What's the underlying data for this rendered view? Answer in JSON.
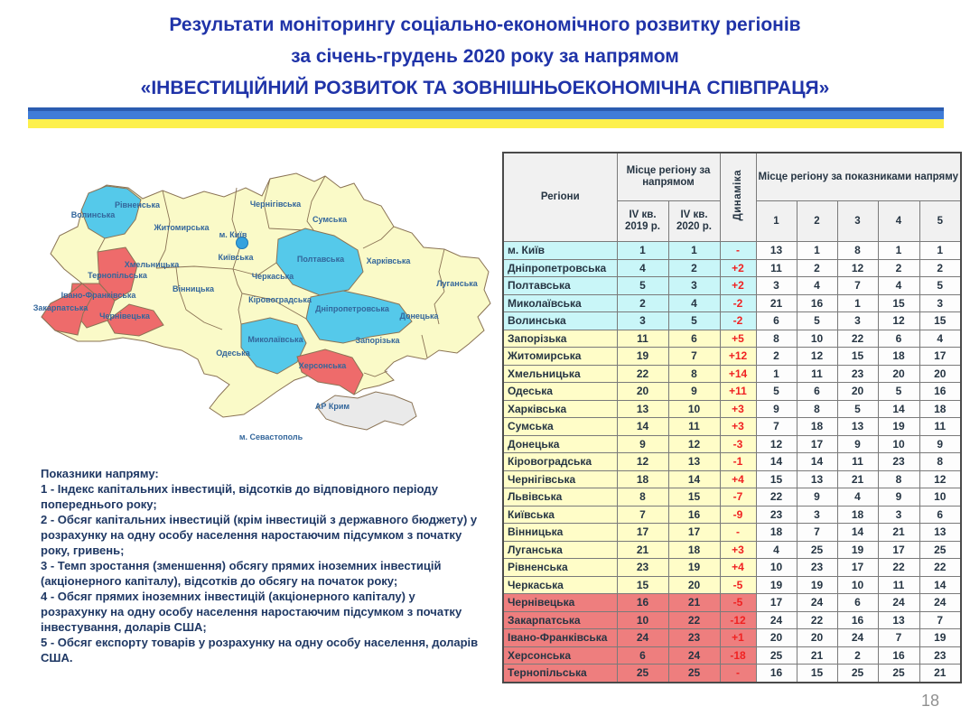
{
  "colors": {
    "title_blue": "#1f33a8",
    "flag_dark_blue": "#2b5cb0",
    "flag_blue": "#3f7cd8",
    "flag_yellow": "#fdf04c",
    "notes_navy": "#1f3864",
    "dyn_red": "#f02222",
    "leaders_bg": "#c9f6f8",
    "middle_bg": "#fffdc8",
    "outsiders_bg": "#ee7e7e",
    "map_leader": "#55c9ea",
    "map_middle": "#fafac8",
    "map_outsider": "#ee6b6b",
    "map_crimea": "#eaeaea",
    "map_border": "#8a7355",
    "map_label": "#33669b",
    "kyiv_dot": "#35a2de",
    "table_text": "#263543",
    "page_gray": "#909090"
  },
  "title": {
    "line1": "Результати моніторингу соціально-економічного розвитку регіонів",
    "line2": "за січень-грудень 2020 року за напрямом",
    "line3": "«ІНВЕСТИЦІЙНИЙ РОЗВИТОК ТА ЗОВНІШНЬОЕКОНОМІЧНА СПІВПРАЦЯ»"
  },
  "page_number": "18",
  "map": {
    "labels": [
      {
        "text": "Волинська"
      },
      {
        "text": "Рівненська"
      },
      {
        "text": "Житомирська"
      },
      {
        "text": "м. Київ"
      },
      {
        "text": "Київська"
      },
      {
        "text": "Чернігівська"
      },
      {
        "text": "Сумська"
      },
      {
        "text": "Полтавська"
      },
      {
        "text": "Харківська"
      },
      {
        "text": "Луганська"
      },
      {
        "text": "Черкаська"
      },
      {
        "text": "Кіровоградська"
      },
      {
        "text": "Дніпропетровська"
      },
      {
        "text": "Донецька"
      },
      {
        "text": "Вінницька"
      },
      {
        "text": "Хмельницька"
      },
      {
        "text": "Тернопільська"
      },
      {
        "text": "Івано-Франківська"
      },
      {
        "text": "Закарпатська"
      },
      {
        "text": "Чернівецька"
      },
      {
        "text": "Миколаївська"
      },
      {
        "text": "Запорізька"
      },
      {
        "text": "Одеська"
      },
      {
        "text": "Херсонська"
      },
      {
        "text": "АР Крим"
      },
      {
        "text": "м. Севастополь"
      }
    ]
  },
  "notes": {
    "lines": [
      "Показники напряму:",
      "1 - Індекс капітальних інвестицій, відсотків до відповідного періоду попереднього року;",
      "2 - Обсяг капітальних інвестицій (крім інвестицій з державного бюджету) у розрахунку на одну особу населення наростаючим підсумком з початку року, гривень;",
      "3 - Темп зростання (зменшення) обсягу прямих іноземних інвестицій (акціонерного капіталу), відсотків до обсягу на початок року;",
      "4 - Обсяг прямих іноземних інвестицій (акціонерного капіталу) у розрахунку на одну особу населення наростаючим підсумком з початку інвестування, доларів США;",
      "5 - Обсяг експорту товарів у розрахунку на одну особу населення, доларів США."
    ]
  },
  "table": {
    "header": {
      "regions": "Регіони",
      "place_group": "Місце регіону за напрямом",
      "q2019": "IV кв. 2019 р.",
      "q2020": "IV кв. 2020 р.",
      "dynamics": "Динаміка",
      "indicators_group": "Місце регіону за показниками напряму",
      "indicator_cols": [
        "1",
        "2",
        "3",
        "4",
        "5"
      ]
    },
    "rows": [
      {
        "region": "м. Київ",
        "q2019": "1",
        "q2020": "1",
        "dyn": "-",
        "ind": [
          "13",
          "1",
          "8",
          "1",
          "1"
        ],
        "group": "leaders"
      },
      {
        "region": "Дніпропетровська",
        "q2019": "4",
        "q2020": "2",
        "dyn": "+2",
        "ind": [
          "11",
          "2",
          "12",
          "2",
          "2"
        ],
        "group": "leaders"
      },
      {
        "region": "Полтавська",
        "q2019": "5",
        "q2020": "3",
        "dyn": "+2",
        "ind": [
          "3",
          "4",
          "7",
          "4",
          "5"
        ],
        "group": "leaders"
      },
      {
        "region": "Миколаївська",
        "q2019": "2",
        "q2020": "4",
        "dyn": "-2",
        "ind": [
          "21",
          "16",
          "1",
          "15",
          "3"
        ],
        "group": "leaders"
      },
      {
        "region": "Волинська",
        "q2019": "3",
        "q2020": "5",
        "dyn": "-2",
        "ind": [
          "6",
          "5",
          "3",
          "12",
          "15"
        ],
        "group": "leaders"
      },
      {
        "region": "Запорізька",
        "q2019": "11",
        "q2020": "6",
        "dyn": "+5",
        "ind": [
          "8",
          "10",
          "22",
          "6",
          "4"
        ],
        "group": "middle"
      },
      {
        "region": "Житомирська",
        "q2019": "19",
        "q2020": "7",
        "dyn": "+12",
        "ind": [
          "2",
          "12",
          "15",
          "18",
          "17"
        ],
        "group": "middle"
      },
      {
        "region": "Хмельницька",
        "q2019": "22",
        "q2020": "8",
        "dyn": "+14",
        "ind": [
          "1",
          "11",
          "23",
          "20",
          "20"
        ],
        "group": "middle"
      },
      {
        "region": "Одеська",
        "q2019": "20",
        "q2020": "9",
        "dyn": "+11",
        "ind": [
          "5",
          "6",
          "20",
          "5",
          "16"
        ],
        "group": "middle"
      },
      {
        "region": "Харківська",
        "q2019": "13",
        "q2020": "10",
        "dyn": "+3",
        "ind": [
          "9",
          "8",
          "5",
          "14",
          "18"
        ],
        "group": "middle"
      },
      {
        "region": "Сумська",
        "q2019": "14",
        "q2020": "11",
        "dyn": "+3",
        "ind": [
          "7",
          "18",
          "13",
          "19",
          "11"
        ],
        "group": "middle"
      },
      {
        "region": "Донецька",
        "q2019": "9",
        "q2020": "12",
        "dyn": "-3",
        "ind": [
          "12",
          "17",
          "9",
          "10",
          "9"
        ],
        "group": "middle"
      },
      {
        "region": "Кіровоградська",
        "q2019": "12",
        "q2020": "13",
        "dyn": "-1",
        "ind": [
          "14",
          "14",
          "11",
          "23",
          "8"
        ],
        "group": "middle"
      },
      {
        "region": "Чернігівська",
        "q2019": "18",
        "q2020": "14",
        "dyn": "+4",
        "ind": [
          "15",
          "13",
          "21",
          "8",
          "12"
        ],
        "group": "middle"
      },
      {
        "region": "Львівська",
        "q2019": "8",
        "q2020": "15",
        "dyn": "-7",
        "ind": [
          "22",
          "9",
          "4",
          "9",
          "10"
        ],
        "group": "middle"
      },
      {
        "region": "Київська",
        "q2019": "7",
        "q2020": "16",
        "dyn": "-9",
        "ind": [
          "23",
          "3",
          "18",
          "3",
          "6"
        ],
        "group": "middle"
      },
      {
        "region": "Вінницька",
        "q2019": "17",
        "q2020": "17",
        "dyn": "-",
        "ind": [
          "18",
          "7",
          "14",
          "21",
          "13"
        ],
        "group": "middle"
      },
      {
        "region": "Луганська",
        "q2019": "21",
        "q2020": "18",
        "dyn": "+3",
        "ind": [
          "4",
          "25",
          "19",
          "17",
          "25"
        ],
        "group": "middle"
      },
      {
        "region": "Рівненська",
        "q2019": "23",
        "q2020": "19",
        "dyn": "+4",
        "ind": [
          "10",
          "23",
          "17",
          "22",
          "22"
        ],
        "group": "middle"
      },
      {
        "region": "Черкаська",
        "q2019": "15",
        "q2020": "20",
        "dyn": "-5",
        "ind": [
          "19",
          "19",
          "10",
          "11",
          "14"
        ],
        "group": "middle"
      },
      {
        "region": "Чернівецька",
        "q2019": "16",
        "q2020": "21",
        "dyn": "-5",
        "ind": [
          "17",
          "24",
          "6",
          "24",
          "24"
        ],
        "group": "outsiders"
      },
      {
        "region": "Закарпатська",
        "q2019": "10",
        "q2020": "22",
        "dyn": "-12",
        "ind": [
          "24",
          "22",
          "16",
          "13",
          "7"
        ],
        "group": "outsiders"
      },
      {
        "region": "Івано-Франківська",
        "q2019": "24",
        "q2020": "23",
        "dyn": "+1",
        "ind": [
          "20",
          "20",
          "24",
          "7",
          "19"
        ],
        "group": "outsiders"
      },
      {
        "region": "Херсонська",
        "q2019": "6",
        "q2020": "24",
        "dyn": "-18",
        "ind": [
          "25",
          "21",
          "2",
          "16",
          "23"
        ],
        "group": "outsiders"
      },
      {
        "region": "Тернопільська",
        "q2019": "25",
        "q2020": "25",
        "dyn": "-",
        "ind": [
          "16",
          "15",
          "25",
          "25",
          "21"
        ],
        "group": "outsiders"
      }
    ]
  }
}
